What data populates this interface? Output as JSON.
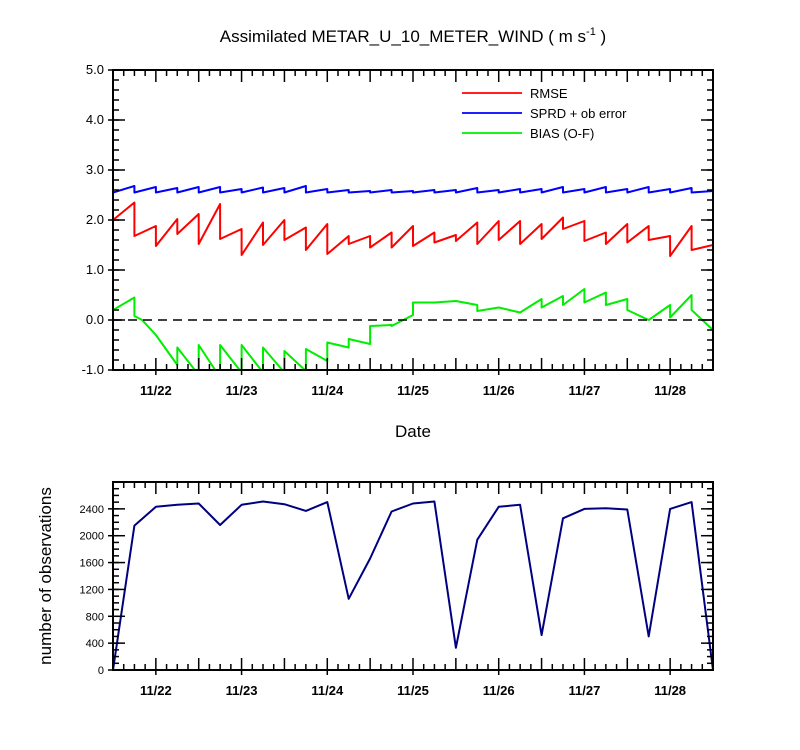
{
  "chart_data": [
    {
      "type": "line",
      "title": "Assimilated METAR_U_10_METER_WIND",
      "title_units": "( m s",
      "title_units_exp": "-1",
      "title_units_close": " )",
      "xlabel": "Date",
      "ylabel": "",
      "ylim": [
        -1.0,
        5.0
      ],
      "xlim": [
        21.5,
        28.5
      ],
      "yticks": [
        -1.0,
        0.0,
        1.0,
        2.0,
        3.0,
        4.0,
        5.0
      ],
      "ytick_labels": [
        "-1.0",
        "0.0",
        "1.0",
        "2.0",
        "3.0",
        "4.0",
        "5.0"
      ],
      "xticks": [
        22,
        23,
        24,
        25,
        26,
        27,
        28
      ],
      "xtick_labels": [
        "11/22",
        "11/23",
        "11/24",
        "11/25",
        "11/26",
        "11/27",
        "11/28"
      ],
      "zero_line": 0.0,
      "legend_position": "top-right",
      "series": [
        {
          "name": "RMSE",
          "color": "#ff0000",
          "x": [
            21.5,
            21.75,
            21.75,
            22.0,
            22.0,
            22.25,
            22.25,
            22.5,
            22.5,
            22.75,
            22.75,
            23.0,
            23.0,
            23.25,
            23.25,
            23.5,
            23.5,
            23.75,
            23.75,
            24.0,
            24.0,
            24.25,
            24.25,
            24.5,
            24.5,
            24.75,
            24.75,
            25.0,
            25.0,
            25.25,
            25.25,
            25.5,
            25.5,
            25.75,
            25.75,
            26.0,
            26.0,
            26.25,
            26.25,
            26.5,
            26.5,
            26.75,
            26.75,
            27.0,
            27.0,
            27.25,
            27.25,
            27.5,
            27.5,
            27.75,
            27.75,
            28.0,
            28.0,
            28.25,
            28.25,
            28.5
          ],
          "values": [
            2.0,
            2.35,
            1.68,
            1.88,
            1.48,
            2.02,
            1.72,
            2.12,
            1.52,
            2.32,
            1.62,
            1.82,
            1.3,
            1.95,
            1.5,
            2.0,
            1.6,
            1.85,
            1.4,
            1.92,
            1.32,
            1.68,
            1.52,
            1.68,
            1.45,
            1.75,
            1.45,
            1.88,
            1.48,
            1.75,
            1.55,
            1.7,
            1.58,
            1.95,
            1.52,
            1.98,
            1.6,
            1.98,
            1.52,
            1.92,
            1.62,
            2.05,
            1.82,
            1.98,
            1.58,
            1.75,
            1.52,
            1.92,
            1.55,
            1.88,
            1.6,
            1.68,
            1.28,
            1.88,
            1.4,
            1.5
          ]
        },
        {
          "name": "SPRD + ob error",
          "color": "#0000ff",
          "x": [
            21.5,
            21.75,
            21.75,
            22.0,
            22.0,
            22.25,
            22.25,
            22.5,
            22.5,
            22.75,
            22.75,
            23.0,
            23.0,
            23.25,
            23.25,
            23.5,
            23.5,
            23.75,
            23.75,
            24.0,
            24.0,
            24.25,
            24.25,
            24.5,
            24.5,
            24.75,
            24.75,
            25.0,
            25.0,
            25.25,
            25.25,
            25.5,
            25.5,
            25.75,
            25.75,
            26.0,
            26.0,
            26.25,
            26.25,
            26.5,
            26.5,
            26.75,
            26.75,
            27.0,
            27.0,
            27.25,
            27.25,
            27.5,
            27.5,
            27.75,
            27.75,
            28.0,
            28.0,
            28.25,
            28.25,
            28.5
          ],
          "values": [
            2.55,
            2.68,
            2.55,
            2.66,
            2.55,
            2.64,
            2.55,
            2.66,
            2.55,
            2.66,
            2.55,
            2.62,
            2.55,
            2.65,
            2.55,
            2.64,
            2.55,
            2.68,
            2.55,
            2.62,
            2.55,
            2.6,
            2.55,
            2.58,
            2.55,
            2.6,
            2.55,
            2.58,
            2.55,
            2.6,
            2.55,
            2.6,
            2.55,
            2.64,
            2.55,
            2.6,
            2.55,
            2.62,
            2.55,
            2.62,
            2.55,
            2.66,
            2.55,
            2.62,
            2.55,
            2.66,
            2.55,
            2.62,
            2.55,
            2.66,
            2.55,
            2.62,
            2.55,
            2.64,
            2.55,
            2.58
          ]
        },
        {
          "name": "BIAS (O-F)",
          "color": "#00ee00",
          "x": [
            21.5,
            21.75,
            21.75,
            21.84,
            22.0,
            22.0,
            22.25,
            22.25,
            22.5,
            22.5,
            22.75,
            22.75,
            23.0,
            23.0,
            23.25,
            23.25,
            23.5,
            23.5,
            23.75,
            23.75,
            24.0,
            24.0,
            24.25,
            24.25,
            24.5,
            24.5,
            24.75,
            24.75,
            25.0,
            25.0,
            25.25,
            25.25,
            25.5,
            25.5,
            25.75,
            25.75,
            26.0,
            26.0,
            26.25,
            26.25,
            26.5,
            26.5,
            26.75,
            26.75,
            27.0,
            27.0,
            27.25,
            27.25,
            27.5,
            27.5,
            27.75,
            27.75,
            28.0,
            28.0,
            28.25,
            28.25,
            28.5
          ],
          "values": [
            0.2,
            0.45,
            0.08,
            0.0,
            -0.3,
            -0.3,
            -0.9,
            -0.55,
            -1.1,
            -0.5,
            -1.15,
            -0.5,
            -1.05,
            -0.5,
            -1.05,
            -0.55,
            -1.05,
            -0.62,
            -1.02,
            -0.58,
            -0.82,
            -0.45,
            -0.55,
            -0.38,
            -0.48,
            -0.12,
            -0.1,
            -0.12,
            0.1,
            0.35,
            0.35,
            0.35,
            0.38,
            0.38,
            0.3,
            0.18,
            0.25,
            0.25,
            0.15,
            0.15,
            0.42,
            0.25,
            0.48,
            0.3,
            0.62,
            0.35,
            0.55,
            0.3,
            0.42,
            0.2,
            0.0,
            0.0,
            0.3,
            0.05,
            0.5,
            0.2,
            -0.2
          ]
        }
      ]
    },
    {
      "type": "line",
      "title": "",
      "xlabel": "",
      "ylabel": "number of observations",
      "ylim": [
        0,
        2800
      ],
      "xlim": [
        21.5,
        28.5
      ],
      "yticks": [
        0,
        400,
        800,
        1200,
        1600,
        2000,
        2400
      ],
      "ytick_labels": [
        "0",
        "400",
        "800",
        "1200",
        "1600",
        "2000",
        "2400"
      ],
      "xticks": [
        22,
        23,
        24,
        25,
        26,
        27,
        28
      ],
      "xtick_labels": [
        "11/22",
        "11/23",
        "11/24",
        "11/25",
        "11/26",
        "11/27",
        "11/28"
      ],
      "series": [
        {
          "name": "observations",
          "color": "#000080",
          "x": [
            21.5,
            21.75,
            22.0,
            22.25,
            22.5,
            22.75,
            23.0,
            23.25,
            23.5,
            23.75,
            24.0,
            24.25,
            24.5,
            24.75,
            25.0,
            25.25,
            25.5,
            25.75,
            26.0,
            26.25,
            26.5,
            26.75,
            27.0,
            27.25,
            27.5,
            27.75,
            28.0,
            28.25,
            28.5
          ],
          "values": [
            0,
            2150,
            2430,
            2460,
            2480,
            2160,
            2460,
            2510,
            2470,
            2370,
            2500,
            1060,
            1660,
            2360,
            2480,
            2510,
            330,
            1940,
            2430,
            2460,
            520,
            2260,
            2400,
            2410,
            2390,
            500,
            2400,
            2500,
            0
          ]
        }
      ]
    }
  ]
}
